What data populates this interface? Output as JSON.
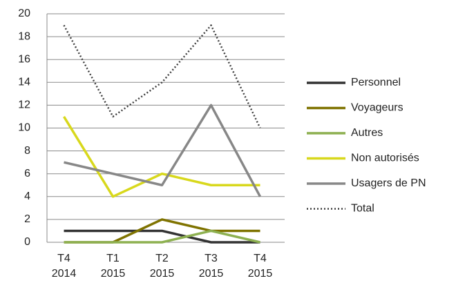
{
  "chart_data": {
    "type": "line",
    "categories": [
      [
        "T4",
        "2014"
      ],
      [
        "T1",
        "2015"
      ],
      [
        "T2",
        "2015"
      ],
      [
        "T3",
        "2015"
      ],
      [
        "T4",
        "2015"
      ]
    ],
    "series": [
      {
        "name": "Personnel",
        "color": "#333333",
        "values": [
          1,
          1,
          1,
          0,
          0
        ]
      },
      {
        "name": "Voyageurs",
        "color": "#7f7300",
        "values": [
          0,
          0,
          2,
          1,
          1
        ]
      },
      {
        "name": "Autres",
        "color": "#8db050",
        "values": [
          0,
          0,
          0,
          1,
          0
        ]
      },
      {
        "name": "Non autorisés",
        "color": "#d8d81c",
        "values": [
          11,
          4,
          6,
          5,
          5
        ]
      },
      {
        "name": "Usagers de PN",
        "color": "#878787",
        "values": [
          7,
          6,
          5,
          12,
          4
        ]
      },
      {
        "name": "Total",
        "color": "#404040",
        "dotted": true,
        "values": [
          19,
          11,
          14,
          19,
          10
        ]
      }
    ],
    "ylim": [
      0,
      20
    ],
    "yticks": [
      0,
      2,
      4,
      6,
      8,
      10,
      12,
      14,
      16,
      18,
      20
    ],
    "grid": true,
    "legend": "right"
  }
}
